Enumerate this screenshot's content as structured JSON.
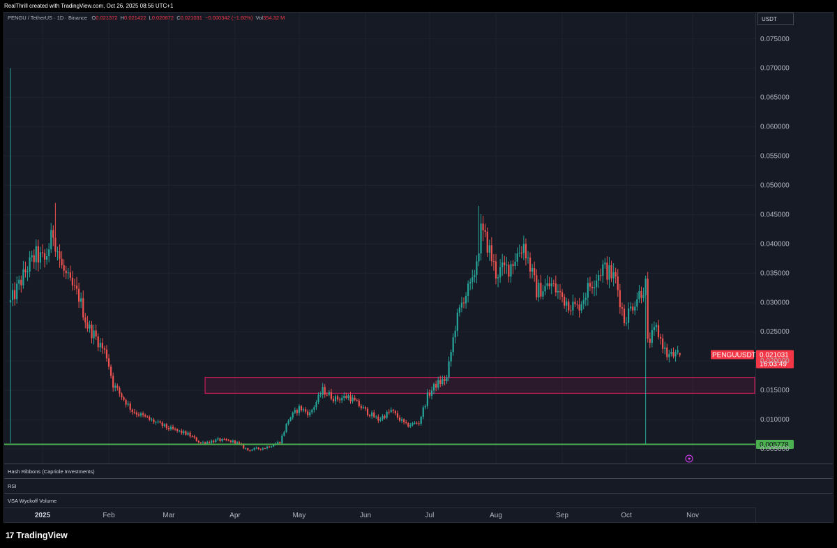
{
  "header": {
    "credit": "RealThrill created with TradingView.com, Oct 26, 2025 08:56 UTC+1"
  },
  "legend": {
    "symbol": "PENGU / TetherUS · 1D · Binance",
    "o_label": "O",
    "o": "0.021372",
    "h_label": "H",
    "h": "0.021422",
    "l_label": "L",
    "l": "0.020672",
    "c_label": "C",
    "c": "0.021031",
    "change": "−0.000342 (−1.60%)",
    "vol_label": "Vol",
    "vol": "354.32 M"
  },
  "currency": "USDT",
  "panels": {
    "hash_ribbons": "Hash Ribbons (Capriole Investments)",
    "rsi": "RSI",
    "vsa": "VSA Wyckoff Volume"
  },
  "brand": {
    "icon": "17",
    "name": "TradingView"
  },
  "price_label": {
    "symbol": "PENGUUSDT",
    "price": "0.021031",
    "countdown": "16:03:49"
  },
  "support_label": "0.005778",
  "colors": {
    "up": "#26a69a",
    "down": "#ef5350",
    "support": "#4caf50",
    "zone_border": "#e91e63",
    "zone_fill": "rgba(233,30,99,0.10)",
    "grid": "#1f232e",
    "axis_text": "#b2b5be",
    "background": "#161a25"
  },
  "chart_data": {
    "type": "candlestick",
    "symbol": "PENGU / TetherUS",
    "interval": "1D",
    "exchange": "Binance",
    "y_unit": "USDT",
    "ylim": [
      0.0025,
      0.0795
    ],
    "y_ticks": [
      "0.075000",
      "0.070000",
      "0.065000",
      "0.060000",
      "0.055000",
      "0.050000",
      "0.045000",
      "0.040000",
      "0.035000",
      "0.030000",
      "0.025000",
      "0.020000",
      "0.015000",
      "0.010000",
      "0.005000"
    ],
    "x_ticks": [
      {
        "label": "2025",
        "date": "2025-01-01",
        "bold": true
      },
      {
        "label": "Feb",
        "date": "2025-02-01"
      },
      {
        "label": "Mar",
        "date": "2025-03-01"
      },
      {
        "label": "Apr",
        "date": "2025-04-01"
      },
      {
        "label": "May",
        "date": "2025-05-01"
      },
      {
        "label": "Jun",
        "date": "2025-06-01"
      },
      {
        "label": "Jul",
        "date": "2025-07-01"
      },
      {
        "label": "Aug",
        "date": "2025-08-01"
      },
      {
        "label": "Sep",
        "date": "2025-09-01"
      },
      {
        "label": "Oct",
        "date": "2025-10-01"
      },
      {
        "label": "Nov",
        "date": "2025-11-01"
      }
    ],
    "grid": true,
    "close_path": [
      [
        "2024-12-17",
        0.03
      ],
      [
        "2024-12-21",
        0.033
      ],
      [
        "2024-12-25",
        0.036
      ],
      [
        "2024-12-29",
        0.038
      ],
      [
        "2025-01-02",
        0.037
      ],
      [
        "2025-01-06",
        0.042
      ],
      [
        "2025-01-10",
        0.036
      ],
      [
        "2025-01-14",
        0.033
      ],
      [
        "2025-01-18",
        0.031
      ],
      [
        "2025-01-22",
        0.026
      ],
      [
        "2025-01-26",
        0.024
      ],
      [
        "2025-01-31",
        0.021
      ],
      [
        "2025-02-03",
        0.016
      ],
      [
        "2025-02-07",
        0.014
      ],
      [
        "2025-02-12",
        0.0115
      ],
      [
        "2025-02-20",
        0.01
      ],
      [
        "2025-03-01",
        0.0085
      ],
      [
        "2025-03-10",
        0.0075
      ],
      [
        "2025-03-16",
        0.006
      ],
      [
        "2025-03-24",
        0.0065
      ],
      [
        "2025-04-01",
        0.0062
      ],
      [
        "2025-04-07",
        0.0048
      ],
      [
        "2025-04-15",
        0.0052
      ],
      [
        "2025-04-22",
        0.0062
      ],
      [
        "2025-04-26",
        0.01
      ],
      [
        "2025-05-01",
        0.012
      ],
      [
        "2025-05-06",
        0.011
      ],
      [
        "2025-05-12",
        0.015
      ],
      [
        "2025-05-18",
        0.0135
      ],
      [
        "2025-05-24",
        0.014
      ],
      [
        "2025-06-01",
        0.0115
      ],
      [
        "2025-06-07",
        0.01
      ],
      [
        "2025-06-13",
        0.0115
      ],
      [
        "2025-06-20",
        0.009
      ],
      [
        "2025-06-26",
        0.0095
      ],
      [
        "2025-06-30",
        0.014
      ],
      [
        "2025-07-04",
        0.016
      ],
      [
        "2025-07-09",
        0.017
      ],
      [
        "2025-07-13",
        0.026
      ],
      [
        "2025-07-17",
        0.031
      ],
      [
        "2025-07-21",
        0.033
      ],
      [
        "2025-07-25",
        0.042
      ],
      [
        "2025-07-28",
        0.04
      ],
      [
        "2025-08-01",
        0.035
      ],
      [
        "2025-08-07",
        0.036
      ],
      [
        "2025-08-14",
        0.04
      ],
      [
        "2025-08-20",
        0.032
      ],
      [
        "2025-08-27",
        0.033
      ],
      [
        "2025-09-02",
        0.0305
      ],
      [
        "2025-09-08",
        0.029
      ],
      [
        "2025-09-14",
        0.033
      ],
      [
        "2025-09-20",
        0.036
      ],
      [
        "2025-09-26",
        0.034
      ],
      [
        "2025-09-30",
        0.027
      ],
      [
        "2025-10-06",
        0.031
      ],
      [
        "2025-10-10",
        0.033
      ],
      [
        "2025-10-11",
        0.023
      ],
      [
        "2025-10-15",
        0.0255
      ],
      [
        "2025-10-20",
        0.021
      ],
      [
        "2025-10-26",
        0.021
      ]
    ],
    "wicks": [
      {
        "date": "2024-12-17",
        "high": 0.07,
        "low": 0.006
      },
      {
        "date": "2025-01-07",
        "high": 0.047
      },
      {
        "date": "2025-07-24",
        "high": 0.0465
      },
      {
        "date": "2025-10-10",
        "low": 0.0058
      }
    ],
    "last_close": 0.021031,
    "support_level": 0.005778,
    "zone": {
      "x_start": "2025-03-18",
      "x_end": "2025-11-30",
      "top": 0.0172,
      "bottom": 0.0145
    }
  }
}
